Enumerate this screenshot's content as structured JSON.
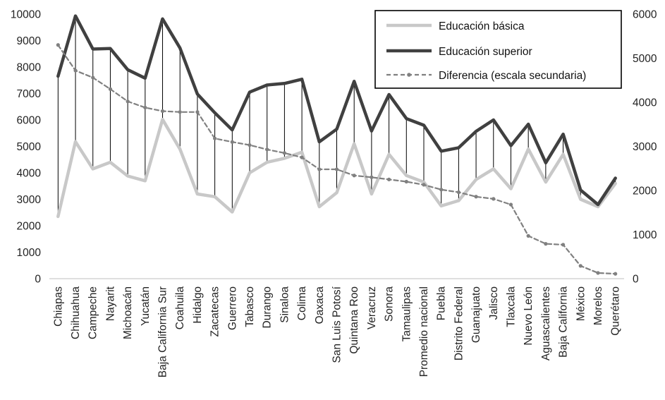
{
  "chart_data": {
    "type": "line",
    "title": "",
    "xlabel": "",
    "ylabel": "",
    "ylim": [
      0,
      10000
    ],
    "y2lim": [
      0,
      6000
    ],
    "yticks": [
      "0",
      "1000",
      "2000",
      "3000",
      "4000",
      "5000",
      "6000",
      "7000",
      "8000",
      "9000",
      "10000"
    ],
    "y2ticks": [
      "0",
      "1000",
      "2000",
      "3000",
      "4000",
      "5000",
      "6000"
    ],
    "legend_position": "top-right",
    "colors": {
      "basica": "#c8c8c8",
      "superior": "#404040",
      "diferencia": "#808080"
    },
    "categories": [
      "Chiapas",
      "Chihuahua",
      "Campeche",
      "Nayarit",
      "Michoacán",
      "Yucatán",
      "Baja California Sur",
      "Coahuila",
      "Hidalgo",
      "Zacatecas",
      "Guerrero",
      "Tabasco",
      "Durango",
      "Sinaloa",
      "Colima",
      "Oaxaca",
      "San Luis Potosí",
      "Quintana Roo",
      "Veracruz",
      "Sonora",
      "Tamaulipas",
      "Promedio nacional",
      "Puebla",
      "Distrito Federal",
      "Guanajuato",
      "Jalisco",
      "Tlaxcala",
      "Nuevo León",
      "Aguascalientes",
      "Baja California",
      "México",
      "Morelos",
      "Querétaro"
    ],
    "series": [
      {
        "name": "Educación básica",
        "axis": "left",
        "style": "solid-light",
        "values": [
          2350,
          5180,
          4150,
          4400,
          3880,
          3700,
          6020,
          4900,
          3200,
          3100,
          2520,
          4000,
          4400,
          4550,
          4780,
          2720,
          3250,
          5100,
          3200,
          4700,
          3900,
          3650,
          2750,
          2950,
          3750,
          4150,
          3400,
          4900,
          3650,
          4700,
          3000,
          2720,
          3600
        ]
      },
      {
        "name": "Educación superior",
        "axis": "left",
        "style": "solid-dark",
        "values": [
          7650,
          9930,
          8680,
          8700,
          7900,
          7580,
          9820,
          8720,
          6980,
          6270,
          5620,
          7050,
          7320,
          7380,
          7540,
          5170,
          5650,
          7460,
          5580,
          6960,
          6050,
          5800,
          4820,
          4950,
          5570,
          6000,
          5030,
          5840,
          4380,
          5460,
          3350,
          2800,
          3800
        ]
      },
      {
        "name": "Diferencia (escala secundaria)",
        "axis": "right",
        "style": "dashed",
        "values": [
          5300,
          4720,
          4560,
          4300,
          4020,
          3880,
          3800,
          3780,
          3780,
          3180,
          3100,
          3030,
          2930,
          2850,
          2750,
          2480,
          2480,
          2340,
          2300,
          2250,
          2200,
          2130,
          2020,
          1960,
          1860,
          1810,
          1680,
          970,
          790,
          770,
          290,
          130,
          110
        ]
      }
    ]
  }
}
